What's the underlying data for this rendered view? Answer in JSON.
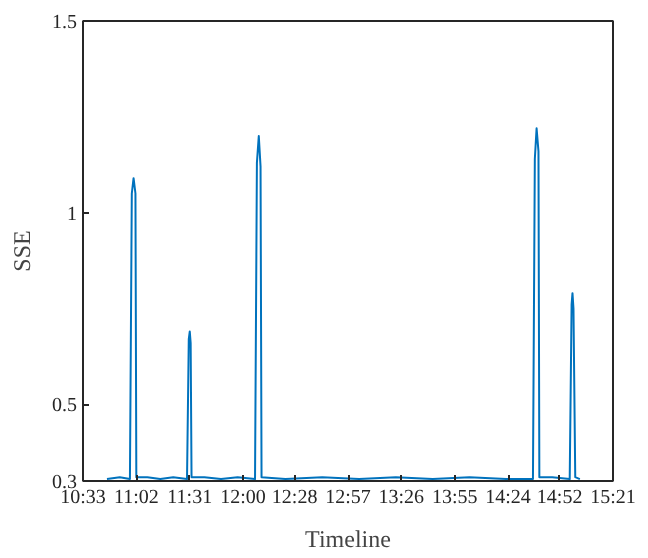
{
  "chart_data": {
    "type": "line",
    "xlabel": "Timeline",
    "ylabel": "SSE",
    "x": [
      10.767,
      10.883,
      10.975,
      10.992,
      11.008,
      11.025,
      11.033,
      11.133,
      11.25,
      11.367,
      11.492,
      11.508,
      11.517,
      11.525,
      11.533,
      11.65,
      11.8,
      11.95,
      12.108,
      12.125,
      12.142,
      12.158,
      12.167,
      12.383,
      12.717,
      13.05,
      13.383,
      13.717,
      14.05,
      14.383,
      14.625,
      14.642,
      14.658,
      14.675,
      14.683,
      14.8,
      14.958,
      14.975,
      14.983,
      14.992,
      15.008,
      15.05
    ],
    "series": [
      {
        "color": "#0072bd",
        "values": [
          0.305,
          0.31,
          0.305,
          1.05,
          1.09,
          1.05,
          0.31,
          0.31,
          0.305,
          0.31,
          0.305,
          0.67,
          0.69,
          0.66,
          0.31,
          0.31,
          0.305,
          0.31,
          0.305,
          1.13,
          1.2,
          1.12,
          0.31,
          0.305,
          0.31,
          0.305,
          0.31,
          0.305,
          0.31,
          0.305,
          0.305,
          1.14,
          1.22,
          1.16,
          0.31,
          0.31,
          0.305,
          0.76,
          0.79,
          0.75,
          0.31,
          0.305
        ]
      }
    ],
    "xlim": [
      10.55,
      15.35
    ],
    "xticks": [
      {
        "value": 10.55,
        "label": "10:33"
      },
      {
        "value": 11.0333,
        "label": "11:02"
      },
      {
        "value": 11.5167,
        "label": "11:31"
      },
      {
        "value": 12,
        "label": "12:00"
      },
      {
        "value": 12.4667,
        "label": "12:28"
      },
      {
        "value": 12.95,
        "label": "12:57"
      },
      {
        "value": 13.4333,
        "label": "13:26"
      },
      {
        "value": 13.9167,
        "label": "13:55"
      },
      {
        "value": 14.4,
        "label": "14:24"
      },
      {
        "value": 14.8667,
        "label": "14:52"
      },
      {
        "value": 15.35,
        "label": "15:21"
      }
    ],
    "ylim": [
      0.3,
      1.5
    ],
    "yticks": [
      0.3,
      0.5,
      1,
      1.5
    ],
    "grid": false,
    "marker": "none",
    "line_style": "solid"
  }
}
